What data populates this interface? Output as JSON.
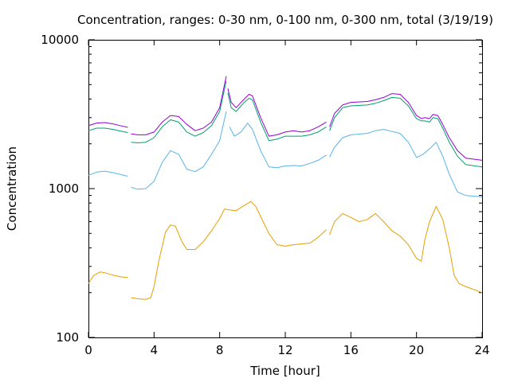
{
  "chart_data": {
    "type": "line",
    "title": "Concentration, ranges: 0-30 nm, 0-100 nm, 0-300 nm, total (3/19/19)",
    "xlabel": "Time [hour]",
    "ylabel": "Concentration",
    "xlim": [
      0,
      24
    ],
    "ylim": [
      100,
      10000
    ],
    "yscale": "log",
    "grid": false,
    "legend": "none",
    "x_ticks": [
      "0",
      "4",
      "8",
      "12",
      "16",
      "20",
      "24"
    ],
    "x_tick_values": [
      0,
      4,
      8,
      12,
      16,
      20,
      24
    ],
    "y_ticks": [
      "100",
      "1000",
      "10000"
    ],
    "y_tick_values": [
      100,
      1000,
      10000
    ],
    "series": [
      {
        "color": "#9400d3",
        "segments": [
          [
            [
              0,
              2650
            ],
            [
              0.5,
              2760
            ],
            [
              1,
              2780
            ],
            [
              1.5,
              2720
            ],
            [
              2,
              2640
            ],
            [
              2.4,
              2580
            ]
          ],
          [
            [
              2.6,
              2330
            ],
            [
              3,
              2300
            ],
            [
              3.5,
              2300
            ],
            [
              4,
              2400
            ],
            [
              4.5,
              2800
            ],
            [
              5,
              3100
            ],
            [
              5.5,
              3050
            ],
            [
              6,
              2700
            ],
            [
              6.5,
              2450
            ],
            [
              7,
              2550
            ],
            [
              7.5,
              2800
            ],
            [
              8,
              3500
            ],
            [
              8.4,
              5700
            ]
          ],
          [
            [
              8.5,
              4700
            ],
            [
              8.7,
              3800
            ],
            [
              9,
              3500
            ],
            [
              9.5,
              4000
            ],
            [
              9.8,
              4300
            ],
            [
              10,
              4200
            ],
            [
              10.5,
              3000
            ],
            [
              11,
              2250
            ],
            [
              11.5,
              2300
            ],
            [
              12,
              2400
            ],
            [
              12.5,
              2450
            ],
            [
              13,
              2400
            ],
            [
              13.5,
              2450
            ],
            [
              14,
              2600
            ],
            [
              14.5,
              2800
            ]
          ],
          [
            [
              14.7,
              2600
            ],
            [
              15,
              3200
            ],
            [
              15.5,
              3650
            ],
            [
              16,
              3800
            ],
            [
              17,
              3850
            ],
            [
              17.5,
              3950
            ],
            [
              18,
              4100
            ],
            [
              18.5,
              4350
            ],
            [
              19,
              4300
            ],
            [
              19.5,
              3800
            ],
            [
              20,
              3100
            ],
            [
              20.3,
              2950
            ],
            [
              20.5,
              3000
            ],
            [
              20.8,
              2950
            ],
            [
              21,
              3150
            ],
            [
              21.3,
              3100
            ],
            [
              21.6,
              2700
            ],
            [
              22,
              2200
            ],
            [
              22.5,
              1800
            ],
            [
              23,
              1600
            ],
            [
              24,
              1550
            ]
          ]
        ]
      },
      {
        "color": "#009e73",
        "segments": [
          [
            [
              0,
              2450
            ],
            [
              0.5,
              2550
            ],
            [
              1,
              2550
            ],
            [
              1.5,
              2500
            ],
            [
              2,
              2430
            ],
            [
              2.4,
              2380
            ]
          ],
          [
            [
              2.6,
              2050
            ],
            [
              3,
              2030
            ],
            [
              3.5,
              2050
            ],
            [
              4,
              2200
            ],
            [
              4.5,
              2600
            ],
            [
              5,
              2900
            ],
            [
              5.5,
              2800
            ],
            [
              6,
              2400
            ],
            [
              6.5,
              2250
            ],
            [
              7,
              2380
            ],
            [
              7.5,
              2650
            ],
            [
              8,
              3300
            ],
            [
              8.4,
              5300
            ]
          ],
          [
            [
              8.5,
              4400
            ],
            [
              8.7,
              3500
            ],
            [
              9,
              3300
            ],
            [
              9.5,
              3800
            ],
            [
              9.8,
              4050
            ],
            [
              10,
              3950
            ],
            [
              10.5,
              2800
            ],
            [
              11,
              2100
            ],
            [
              11.5,
              2150
            ],
            [
              12,
              2250
            ],
            [
              12.5,
              2250
            ],
            [
              13,
              2250
            ],
            [
              13.5,
              2300
            ],
            [
              14,
              2400
            ],
            [
              14.5,
              2600
            ]
          ],
          [
            [
              14.7,
              2450
            ],
            [
              15,
              3000
            ],
            [
              15.5,
              3500
            ],
            [
              16,
              3600
            ],
            [
              17,
              3650
            ],
            [
              17.5,
              3750
            ],
            [
              18,
              3900
            ],
            [
              18.5,
              4100
            ],
            [
              19,
              4050
            ],
            [
              19.5,
              3600
            ],
            [
              20,
              2950
            ],
            [
              20.3,
              2850
            ],
            [
              20.5,
              2850
            ],
            [
              20.8,
              2800
            ],
            [
              21,
              3000
            ],
            [
              21.3,
              2950
            ],
            [
              21.6,
              2550
            ],
            [
              22,
              2050
            ],
            [
              22.5,
              1650
            ],
            [
              23,
              1450
            ],
            [
              24,
              1400
            ]
          ]
        ]
      },
      {
        "color": "#56b4e9",
        "segments": [
          [
            [
              0,
              1230
            ],
            [
              0.5,
              1290
            ],
            [
              1,
              1310
            ],
            [
              1.5,
              1280
            ],
            [
              2,
              1240
            ],
            [
              2.4,
              1210
            ]
          ],
          [
            [
              2.6,
              1020
            ],
            [
              3,
              990
            ],
            [
              3.5,
              1000
            ],
            [
              4,
              1120
            ],
            [
              4.5,
              1500
            ],
            [
              5,
              1800
            ],
            [
              5.5,
              1700
            ],
            [
              6,
              1350
            ],
            [
              6.5,
              1300
            ],
            [
              7,
              1400
            ],
            [
              7.5,
              1700
            ],
            [
              8,
              2100
            ],
            [
              8.4,
              3300
            ]
          ],
          [
            [
              8.6,
              2600
            ],
            [
              8.9,
              2250
            ],
            [
              9.3,
              2400
            ],
            [
              9.7,
              2750
            ],
            [
              10,
              2500
            ],
            [
              10.5,
              1800
            ],
            [
              11,
              1400
            ],
            [
              11.5,
              1380
            ],
            [
              12,
              1420
            ],
            [
              12.5,
              1430
            ],
            [
              13,
              1420
            ],
            [
              13.5,
              1480
            ],
            [
              14,
              1550
            ],
            [
              14.5,
              1680
            ]
          ],
          [
            [
              14.7,
              1630
            ],
            [
              15,
              1900
            ],
            [
              15.5,
              2200
            ],
            [
              16,
              2300
            ],
            [
              17,
              2350
            ],
            [
              17.5,
              2450
            ],
            [
              18,
              2500
            ],
            [
              18.5,
              2420
            ],
            [
              19,
              2350
            ],
            [
              19.5,
              2050
            ],
            [
              20,
              1620
            ],
            [
              20.4,
              1700
            ],
            [
              20.8,
              1850
            ],
            [
              21.2,
              2050
            ],
            [
              21.6,
              1650
            ],
            [
              22,
              1250
            ],
            [
              22.5,
              950
            ],
            [
              23,
              900
            ],
            [
              24,
              880
            ]
          ]
        ]
      },
      {
        "color": "#e69f00",
        "segments": [
          [
            [
              0,
              230
            ],
            [
              0.3,
              260
            ],
            [
              0.7,
              275
            ],
            [
              1,
              272
            ],
            [
              1.5,
              262
            ],
            [
              2,
              255
            ],
            [
              2.4,
              253
            ]
          ],
          [
            [
              2.6,
              185
            ],
            [
              3,
              182
            ],
            [
              3.5,
              180
            ],
            [
              3.8,
              185
            ],
            [
              4,
              220
            ],
            [
              4.3,
              330
            ],
            [
              4.7,
              510
            ],
            [
              5,
              570
            ],
            [
              5.3,
              560
            ],
            [
              5.7,
              440
            ],
            [
              6,
              390
            ],
            [
              6.5,
              390
            ],
            [
              7,
              440
            ],
            [
              7.5,
              520
            ],
            [
              8,
              630
            ],
            [
              8.3,
              730
            ],
            [
              8.6,
              720
            ],
            [
              9,
              710
            ],
            [
              9.5,
              770
            ],
            [
              9.9,
              820
            ],
            [
              10.2,
              760
            ],
            [
              10.5,
              650
            ],
            [
              11,
              500
            ],
            [
              11.5,
              420
            ],
            [
              12,
              410
            ],
            [
              12.5,
              420
            ],
            [
              13,
              425
            ],
            [
              13.5,
              430
            ],
            [
              14,
              470
            ],
            [
              14.5,
              530
            ]
          ],
          [
            [
              14.7,
              490
            ],
            [
              15,
              600
            ],
            [
              15.5,
              680
            ],
            [
              16,
              640
            ],
            [
              16.5,
              600
            ],
            [
              17,
              620
            ],
            [
              17.5,
              680
            ],
            [
              18,
              600
            ],
            [
              18.5,
              520
            ],
            [
              19,
              480
            ],
            [
              19.5,
              420
            ],
            [
              20,
              340
            ],
            [
              20.3,
              325
            ],
            [
              20.5,
              450
            ],
            [
              20.8,
              600
            ],
            [
              21.2,
              760
            ],
            [
              21.6,
              620
            ],
            [
              22,
              400
            ],
            [
              22.3,
              260
            ],
            [
              22.6,
              230
            ],
            [
              23,
              220
            ],
            [
              24,
              200
            ]
          ]
        ]
      }
    ]
  }
}
